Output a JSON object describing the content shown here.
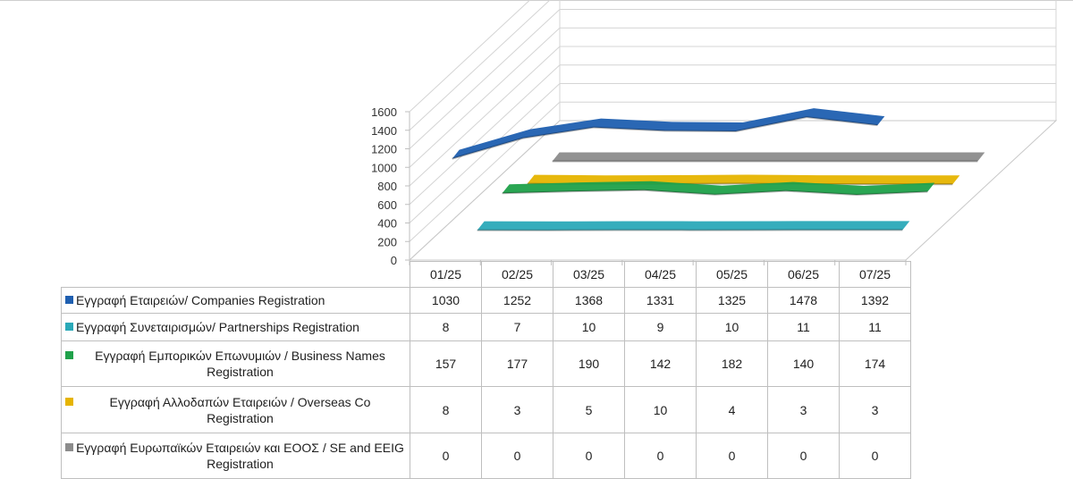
{
  "chart_data": {
    "type": "line",
    "three_d": true,
    "categories": [
      "01/25",
      "02/25",
      "03/25",
      "04/25",
      "05/25",
      "06/25",
      "07/25"
    ],
    "yticks": [
      "0",
      "200",
      "400",
      "600",
      "800",
      "1000",
      "1200",
      "1400",
      "1600"
    ],
    "ylim": [
      0,
      1600
    ],
    "grid": true,
    "legend": "data table below chart",
    "series": [
      {
        "name": "Εγγραφή Εταιρειών/ Companies Registration",
        "color": "#1f5fb0",
        "values": [
          1030,
          1252,
          1368,
          1331,
          1325,
          1478,
          1392
        ],
        "labels": [
          "1030",
          "1252",
          "1368",
          "1331",
          "1325",
          "1478",
          "1392"
        ]
      },
      {
        "name": "Εγγραφή Συνεταιρισμών/ Partnerships Registration",
        "color": "#2aa9b8",
        "values": [
          8,
          7,
          10,
          9,
          10,
          11,
          11
        ],
        "labels": [
          "8",
          "7",
          "10",
          "9",
          "10",
          "11",
          "11"
        ]
      },
      {
        "name": "Εγγραφή Εμπορικών Επωνυμιών / Business Names Registration",
        "color": "#1fa14a",
        "values": [
          157,
          177,
          190,
          142,
          182,
          140,
          174
        ],
        "labels": [
          "157",
          "177",
          "190",
          "142",
          "182",
          "140",
          "174"
        ]
      },
      {
        "name": "Εγγραφή Αλλοδαπών Εταιρειών / Overseas Co Registration",
        "color": "#e6b400",
        "values": [
          8,
          3,
          5,
          10,
          4,
          3,
          3
        ],
        "labels": [
          "8",
          "3",
          "5",
          "10",
          "4",
          "3",
          "3"
        ]
      },
      {
        "name": "Εγγραφή Ευρωπαϊκών Εταιρειών και ΕΟΟΣ / SE and EEIG Registration",
        "color": "#8c8c8c",
        "values": [
          0,
          0,
          0,
          0,
          0,
          0,
          0
        ],
        "labels": [
          "0",
          "0",
          "0",
          "0",
          "0",
          "0",
          "0"
        ]
      }
    ]
  }
}
